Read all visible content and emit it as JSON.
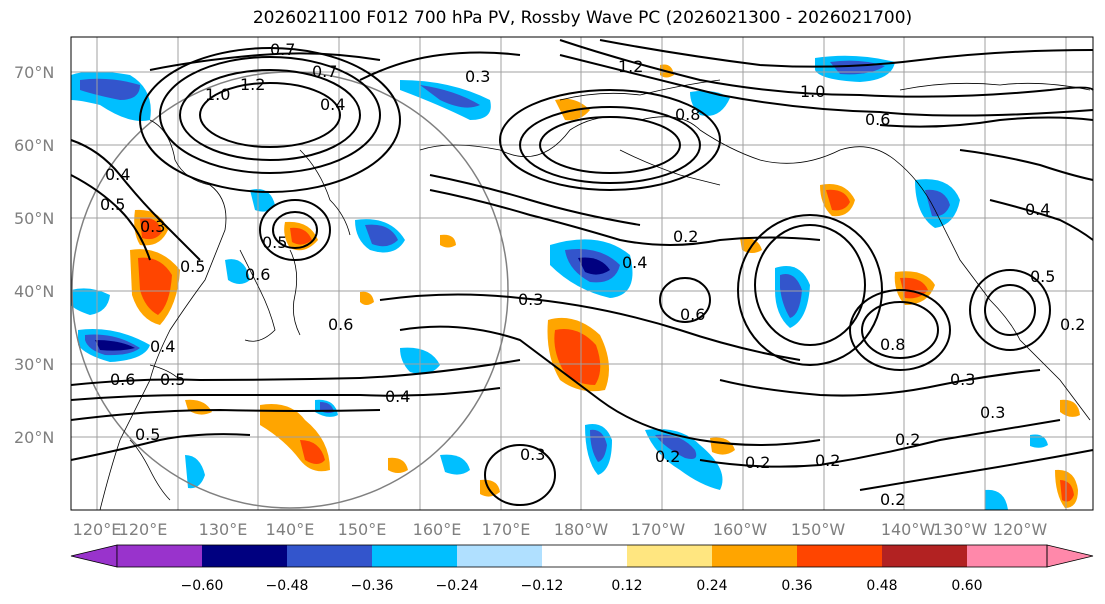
{
  "title": "2026021100 F012 700 hPa PV, Rossby Wave PC (2026021300 - 2026021700)",
  "lat_labels": [
    "70°N",
    "60°N",
    "50°N",
    "40°N",
    "30°N",
    "20°N"
  ],
  "lon_labels": [
    "120°E",
    "130°E",
    "140°E",
    "150°E",
    "160°E",
    "170°E",
    "180°W",
    "170°W",
    "160°W",
    "150°W",
    "140°W",
    "130°W",
    "120°W"
  ],
  "colorbar": {
    "colors": [
      "#9933cc",
      "#000080",
      "#3355cc",
      "#00bfff",
      "#b0e0ff",
      "#ffffff",
      "#ffe680",
      "#ffa500",
      "#ff4500",
      "#b22222",
      "#ff88aa"
    ],
    "ticks": [
      "−0.60",
      "−0.48",
      "−0.36",
      "−0.24",
      "−0.12",
      "0.12",
      "0.24",
      "0.36",
      "0.48",
      "0.60"
    ]
  },
  "contour_labels": [
    "0.7",
    "0.7",
    "1.0",
    "1.2",
    "0.4",
    "0.3",
    "1.2",
    "1.0",
    "0.8",
    "0.6",
    "0.4",
    "0.5",
    "0.3",
    "0.5",
    "0.6",
    "0.4",
    "0.5",
    "0.6",
    "0.5",
    "0.4",
    "0.3",
    "0.5",
    "0.6",
    "0.4",
    "0.2",
    "0.8",
    "0.6",
    "0.2",
    "0.3",
    "0.2",
    "0.2",
    "0.2",
    "0.3",
    "0.2",
    "0.3",
    "0.5",
    "0.2",
    "0.4"
  ],
  "map": {
    "colors": {
      "blue_deep": "#000080",
      "blue": "#3355cc",
      "cyan": "#00bfff",
      "orange": "#ffa500",
      "red": "#ff4500",
      "yellow": "#ffe680"
    }
  }
}
